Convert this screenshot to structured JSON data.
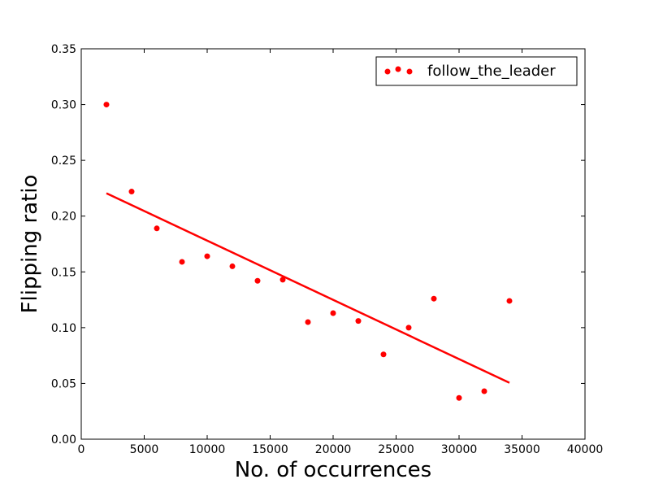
{
  "chart_data": {
    "type": "scatter",
    "title": "",
    "xlabel": "No. of occurrences",
    "ylabel": "Flipping ratio",
    "xlim": [
      0,
      40000
    ],
    "ylim": [
      0,
      0.35
    ],
    "x_ticks": [
      0,
      5000,
      10000,
      15000,
      20000,
      25000,
      30000,
      35000,
      40000
    ],
    "x_tick_labels": [
      "0",
      "5000",
      "10000",
      "15000",
      "20000",
      "25000",
      "30000",
      "35000",
      "40000"
    ],
    "y_ticks": [
      0,
      0.05,
      0.1,
      0.15,
      0.2,
      0.25,
      0.3,
      0.35
    ],
    "y_tick_labels": [
      "0.00",
      "0.05",
      "0.10",
      "0.15",
      "0.20",
      "0.25",
      "0.30",
      "0.35"
    ],
    "grid": false,
    "legend_position": "top-right",
    "series": [
      {
        "name": "follow_the_leader",
        "color": "#ff0000",
        "marker": "circle",
        "x": [
          2000,
          4000,
          6000,
          8000,
          10000,
          12000,
          14000,
          16000,
          18000,
          20000,
          22000,
          24000,
          26000,
          28000,
          30000,
          32000,
          34000
        ],
        "y": [
          0.3,
          0.222,
          0.189,
          0.159,
          0.164,
          0.155,
          0.142,
          0.143,
          0.105,
          0.113,
          0.106,
          0.076,
          0.1,
          0.126,
          0.037,
          0.043,
          0.124
        ]
      }
    ],
    "fit_line": {
      "color": "#ff0000",
      "x": [
        2000,
        34000
      ],
      "y": [
        0.2205,
        0.0506
      ]
    }
  }
}
